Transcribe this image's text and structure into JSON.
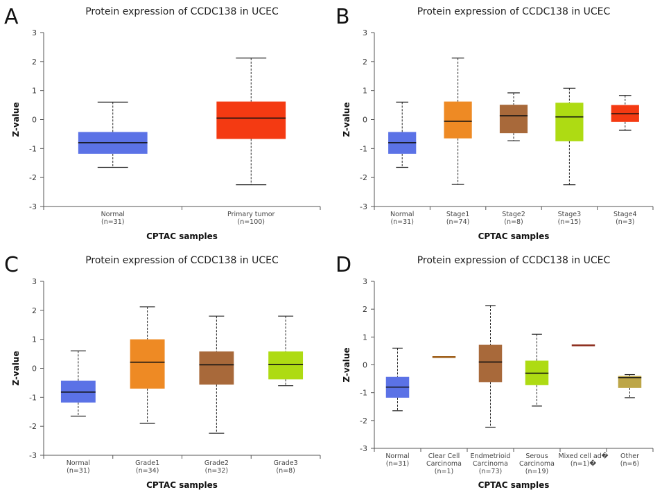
{
  "chart_data": [
    {
      "panel": "A",
      "type": "box",
      "title": "Protein expression of CCDC138 in UCEC",
      "xlabel": "CPTAC samples",
      "ylabel": "Z-value",
      "ylim": [
        -3,
        3
      ],
      "yticks": [
        -3,
        -2,
        -1,
        0,
        1,
        2,
        3
      ],
      "groups": [
        {
          "label": [
            "Normal",
            "(n=31)"
          ],
          "color": "#5B72E6",
          "min": -1.65,
          "q1": -1.18,
          "median": -0.8,
          "q3": -0.43,
          "max": 0.6
        },
        {
          "label": [
            "Primary tumor",
            "(n=100)"
          ],
          "color": "#F43A12",
          "min": -2.25,
          "q1": -0.67,
          "median": 0.05,
          "q3": 0.62,
          "max": 2.12
        }
      ]
    },
    {
      "panel": "B",
      "type": "box",
      "title": "Protein expression of CCDC138 in UCEC",
      "xlabel": "CPTAC samples",
      "ylabel": "Z-value",
      "ylim": [
        -3,
        3
      ],
      "yticks": [
        -3,
        -2,
        -1,
        0,
        1,
        2,
        3
      ],
      "groups": [
        {
          "label": [
            "Normal",
            "(n=31)"
          ],
          "color": "#5B72E6",
          "min": -1.65,
          "q1": -1.18,
          "median": -0.8,
          "q3": -0.43,
          "max": 0.6
        },
        {
          "label": [
            "Stage1",
            "(n=74)"
          ],
          "color": "#EE8A24",
          "min": -2.24,
          "q1": -0.65,
          "median": -0.06,
          "q3": 0.62,
          "max": 2.12
        },
        {
          "label": [
            "Stage2",
            "(n=8)"
          ],
          "color": "#A8693A",
          "min": -0.73,
          "q1": -0.47,
          "median": 0.13,
          "q3": 0.51,
          "max": 0.92
        },
        {
          "label": [
            "Stage3",
            "(n=15)"
          ],
          "color": "#AEDB13",
          "min": -2.25,
          "q1": -0.75,
          "median": 0.09,
          "q3": 0.58,
          "max": 1.08
        },
        {
          "label": [
            "Stage4",
            "(n=3)"
          ],
          "color": "#F43A12",
          "min": -0.37,
          "q1": -0.08,
          "median": 0.2,
          "q3": 0.5,
          "max": 0.83
        }
      ]
    },
    {
      "panel": "C",
      "type": "box",
      "title": "Protein expression of CCDC138 in UCEC",
      "xlabel": "CPTAC samples",
      "ylabel": "Z-value",
      "ylim": [
        -3,
        3
      ],
      "yticks": [
        -3,
        -2,
        -1,
        0,
        1,
        2,
        3
      ],
      "groups": [
        {
          "label": [
            "Normal",
            "(n=31)"
          ],
          "color": "#5B72E6",
          "min": -1.65,
          "q1": -1.18,
          "median": -0.82,
          "q3": -0.43,
          "max": 0.6
        },
        {
          "label": [
            "Grade1",
            "(n=34)"
          ],
          "color": "#EE8A24",
          "min": -1.9,
          "q1": -0.7,
          "median": 0.21,
          "q3": 1.0,
          "max": 2.12
        },
        {
          "label": [
            "Grade2",
            "(n=32)"
          ],
          "color": "#A8693A",
          "min": -2.24,
          "q1": -0.56,
          "median": 0.12,
          "q3": 0.58,
          "max": 1.8
        },
        {
          "label": [
            "Grade3",
            "(n=8)"
          ],
          "color": "#AEDB13",
          "min": -0.6,
          "q1": -0.38,
          "median": 0.13,
          "q3": 0.58,
          "max": 1.8
        }
      ]
    },
    {
      "panel": "D",
      "type": "box",
      "title": "Protein expression of CCDC138 in UCEC",
      "xlabel": "CPTAC samples",
      "ylabel": "Z-value",
      "ylim": [
        -3,
        3
      ],
      "yticks": [
        -3,
        -2,
        -1,
        0,
        1,
        2,
        3
      ],
      "groups": [
        {
          "label": [
            "Normal",
            "(n=31)"
          ],
          "color": "#5B72E6",
          "min": -1.65,
          "q1": -1.18,
          "median": -0.8,
          "q3": -0.43,
          "max": 0.6
        },
        {
          "label": [
            "Clear Cell",
            "Carcinoma",
            "(n=1)"
          ],
          "color": "#9B5A12",
          "min": 0.28,
          "q1": 0.28,
          "median": 0.28,
          "q3": 0.28,
          "max": 0.28
        },
        {
          "label": [
            "Endmetrioid",
            "Carcinoma",
            "(n=73)"
          ],
          "color": "#A8693A",
          "min": -2.24,
          "q1": -0.62,
          "median": 0.1,
          "q3": 0.72,
          "max": 2.13
        },
        {
          "label": [
            "Serous",
            "Carcinoma",
            "(n=19)"
          ],
          "color": "#AEDB13",
          "min": -1.48,
          "q1": -0.73,
          "median": -0.3,
          "q3": 0.15,
          "max": 1.1
        },
        {
          "label": [
            "Mixed cell ad�",
            "(n=1)�"
          ],
          "color": "#8B2A1A",
          "min": 0.7,
          "q1": 0.7,
          "median": 0.7,
          "q3": 0.7,
          "max": 0.7
        },
        {
          "label": [
            "Other",
            "(n=6)"
          ],
          "color": "#BDA648",
          "min": -1.18,
          "q1": -0.83,
          "median": -0.46,
          "q3": -0.4,
          "max": -0.35
        }
      ]
    }
  ]
}
